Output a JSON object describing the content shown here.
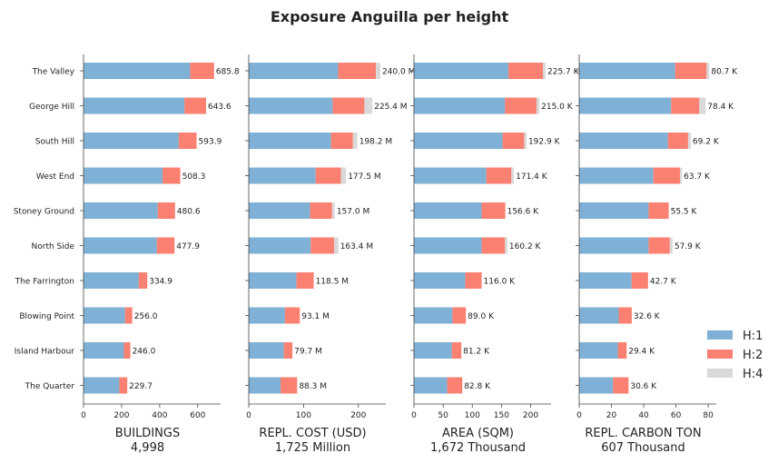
{
  "chart_data": {
    "type": "bar",
    "orientation": "horizontal",
    "stacked": true,
    "title": "Exposure Anguilla per height",
    "categories": [
      "The Valley",
      "George Hill",
      "South Hill",
      "West End",
      "Stoney Ground",
      "North Side",
      "The Farrington",
      "Blowing Point",
      "Island Harbour",
      "The Quarter"
    ],
    "legend": {
      "placement": "right",
      "entries": [
        {
          "name": "H:1",
          "color": "#7fb0d5"
        },
        {
          "name": "H:2",
          "color": "#fa8072"
        },
        {
          "name": "H:4",
          "color": "#d9d9d9"
        }
      ]
    },
    "panels": [
      {
        "xlabel": "BUILDINGS",
        "subtitle": "4,998",
        "xlim": [
          0,
          720
        ],
        "xticks": [
          0,
          200,
          400,
          600
        ],
        "xtick_labels": [
          "0",
          "200",
          "400",
          "600"
        ],
        "series": [
          {
            "name": "H:1",
            "values": [
              560,
              530,
              500,
              415,
              390,
              385,
              290,
              218,
              212,
              188
            ]
          },
          {
            "name": "H:2",
            "values": [
              125.8,
              113.6,
              93.9,
              93.3,
              90.6,
              92.9,
              44.9,
              38.0,
              34.0,
              41.7
            ]
          },
          {
            "name": "H:4",
            "values": [
              0,
              0,
              0,
              0,
              0,
              0,
              0,
              0,
              0,
              0
            ]
          }
        ],
        "labels": [
          "685.8",
          "643.6",
          "593.9",
          "508.3",
          "480.6",
          "477.9",
          "334.9",
          "256.0",
          "246.0",
          "229.7"
        ]
      },
      {
        "xlabel": "REPL. COST (USD)",
        "subtitle": "1,725 Million",
        "xlim": [
          0,
          250
        ],
        "xticks": [
          0,
          100,
          200
        ],
        "xtick_labels": [
          "0",
          "100",
          "200"
        ],
        "series": [
          {
            "name": "H:1",
            "values": [
              163,
              153,
              150,
              122,
              112,
              113,
              87,
              66,
              64,
              58
            ]
          },
          {
            "name": "H:2",
            "values": [
              69,
              58,
              40,
              46,
              40,
              43,
              31.5,
              27.1,
              15.7,
              30.3
            ]
          },
          {
            "name": "H:4",
            "values": [
              8,
              14.4,
              8.2,
              9.5,
              5,
              7.4,
              0,
              0,
              0,
              0
            ]
          }
        ],
        "labels": [
          "240.0 M",
          "225.4 M",
          "198.2 M",
          "177.5 M",
          "157.0 M",
          "163.4 M",
          "118.5 M",
          "93.1 M",
          "79.7 M",
          "88.3 M"
        ]
      },
      {
        "xlabel": "AREA (SQM)",
        "subtitle": "1,672 Thousand",
        "xlim": [
          0,
          235
        ],
        "xticks": [
          0,
          50,
          100,
          150,
          200
        ],
        "xtick_labels": [
          "0",
          "50",
          "100",
          "150",
          "200"
        ],
        "series": [
          {
            "name": "H:1",
            "values": [
              162,
              156,
              152,
              124,
              116,
              116,
              88,
              66,
              65,
              57
            ]
          },
          {
            "name": "H:2",
            "values": [
              59,
              54,
              37,
              43,
              40.6,
              40,
              28,
              23,
              16.2,
              25.8
            ]
          },
          {
            "name": "H:4",
            "values": [
              4.7,
              5.0,
              3.9,
              4.4,
              0,
              4.2,
              0,
              0,
              0,
              0
            ]
          }
        ],
        "labels": [
          "225.7 K",
          "215.0 K",
          "192.9 K",
          "171.4 K",
          "156.6 K",
          "160.2 K",
          "116.0 K",
          "89.0 K",
          "81.2 K",
          "82.8 K"
        ]
      },
      {
        "xlabel": "REPL. CARBON TON",
        "subtitle": "607 Thousand",
        "xlim": [
          0,
          85
        ],
        "xticks": [
          0,
          20,
          40,
          60,
          80
        ],
        "xtick_labels": [
          "0",
          "20",
          "40",
          "60",
          "80"
        ],
        "series": [
          {
            "name": "H:1",
            "values": [
              59.5,
              57,
              55,
              46,
              43,
              43,
              32.5,
              24.5,
              24,
              21
            ]
          },
          {
            "name": "H:2",
            "values": [
              19.5,
              17.5,
              12.5,
              16.5,
              12.5,
              13.2,
              10.2,
              8.1,
              5.4,
              9.6
            ]
          },
          {
            "name": "H:4",
            "values": [
              1.7,
              3.9,
              1.7,
              1.2,
              0,
              1.7,
              0,
              0,
              0,
              0
            ]
          }
        ],
        "labels": [
          "80.7 K",
          "78.4 K",
          "69.2 K",
          "63.7 K",
          "55.5 K",
          "57.9 K",
          "42.7 K",
          "32.6 K",
          "29.4 K",
          "30.6 K"
        ]
      }
    ]
  }
}
